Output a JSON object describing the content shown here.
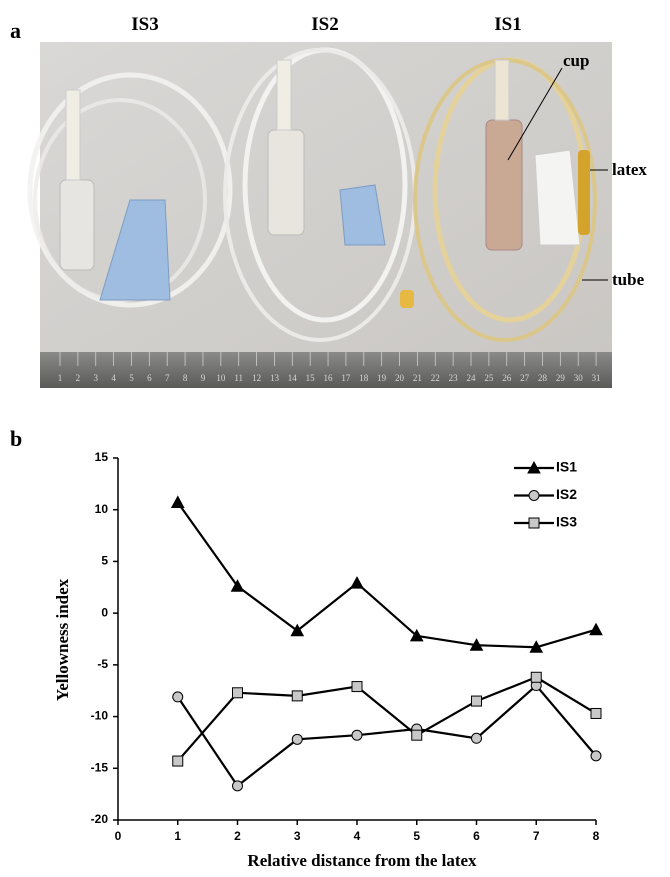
{
  "panel_a": {
    "label": "a",
    "samples": [
      "IS3",
      "IS2",
      "IS1"
    ],
    "parts": [
      "cup",
      "latex",
      "tube"
    ],
    "ruler": [
      "1",
      "2",
      "3",
      "4",
      "5",
      "6",
      "7",
      "8",
      "9",
      "10",
      "11",
      "12",
      "13",
      "14",
      "15",
      "16",
      "17",
      "18",
      "19",
      "20",
      "21",
      "22",
      "23",
      "24",
      "25",
      "26",
      "27",
      "28",
      "29",
      "30",
      "31"
    ]
  },
  "panel_b_label": "b",
  "chart_data": {
    "type": "line",
    "xlabel": "Relative distance from the latex",
    "ylabel": "Yellowness index",
    "x": [
      1,
      2,
      3,
      4,
      5,
      6,
      7,
      8
    ],
    "series": [
      {
        "name": "IS1",
        "color": "#000000",
        "marker": "triangle",
        "values": [
          10.7,
          2.6,
          -1.7,
          2.9,
          -2.2,
          -3.1,
          -3.3,
          -1.6
        ]
      },
      {
        "name": "IS2",
        "color": "#000000",
        "marker": "circle",
        "values": [
          -8.1,
          -16.7,
          -12.2,
          -11.8,
          -11.2,
          -12.1,
          -7.0,
          -13.8
        ]
      },
      {
        "name": "IS3",
        "color": "#000000",
        "marker": "square",
        "values": [
          -14.3,
          -7.7,
          -8.0,
          -7.1,
          -11.8,
          -8.5,
          -6.2,
          -9.7
        ]
      }
    ],
    "xlim": [
      0,
      8
    ],
    "xticks": [
      0,
      1,
      2,
      3,
      4,
      5,
      6,
      7,
      8
    ],
    "ylim": [
      -20,
      15
    ],
    "yticks": [
      -20,
      -15,
      -10,
      -5,
      0,
      5,
      10,
      15
    ],
    "legend": "upper right"
  }
}
